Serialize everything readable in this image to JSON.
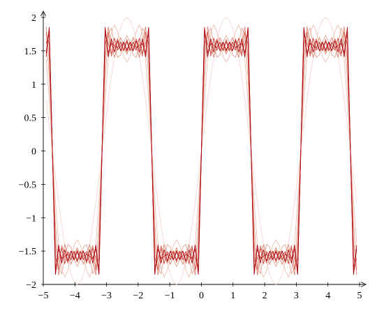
{
  "chart_data": {
    "type": "line",
    "x": [
      -4.909,
      -4.811,
      -4.712,
      -4.614,
      -4.516,
      -4.418,
      -4.32,
      -4.222,
      -4.123,
      -4.025,
      -3.927,
      -3.829,
      -3.731,
      -3.632,
      -3.534,
      -3.436,
      -3.338,
      -3.24,
      -3.142,
      -3.043,
      -2.945,
      -2.847,
      -2.749,
      -2.651,
      -2.553,
      -2.454,
      -2.356,
      -2.258,
      -2.16,
      -2.062,
      -1.963,
      -1.865,
      -1.767,
      -1.669,
      -1.571,
      -1.473,
      -1.374,
      -1.276,
      -1.178,
      -1.08,
      -0.982,
      -0.884,
      -0.785,
      -0.687,
      -0.589,
      -0.491,
      -0.393,
      -0.295,
      -0.196,
      -0.098,
      0,
      0.098,
      0.196,
      0.295,
      0.393,
      0.491,
      0.589,
      0.687,
      0.785,
      0.884,
      0.982,
      1.08,
      1.178,
      1.276,
      1.374,
      1.473,
      1.571,
      1.669,
      1.767,
      1.865,
      1.963,
      2.062,
      2.16,
      2.258,
      2.356,
      2.454,
      2.553,
      2.651,
      2.749,
      2.847,
      2.945,
      3.043,
      3.142,
      3.24,
      3.338,
      3.436,
      3.534,
      3.632,
      3.731,
      3.829,
      3.927,
      4.025,
      4.123,
      4.222,
      4.32,
      4.418,
      4.516,
      4.614,
      4.712,
      4.811,
      4.909
    ],
    "series": [
      {
        "color": "#f3d8d0",
        "values": [
          0.77,
          0.39,
          0,
          -0.39,
          -0.77,
          -1.11,
          -1.41,
          -1.66,
          -1.85,
          -1.96,
          -2,
          -1.96,
          -1.85,
          -1.66,
          -1.41,
          -1.11,
          -0.77,
          -0.39,
          0,
          0.39,
          0.77,
          1.11,
          1.41,
          1.66,
          1.85,
          1.96,
          2,
          1.96,
          1.85,
          1.66,
          1.41,
          1.11,
          0.77,
          0.39,
          0,
          -0.39,
          -0.77,
          -1.11,
          -1.41,
          -1.66,
          -1.85,
          -1.96,
          -2,
          -1.96,
          -1.85,
          -1.66,
          -1.41,
          -1.11,
          -0.77,
          -0.39,
          0,
          0.39,
          0.77,
          1.11,
          1.41,
          1.66,
          1.85,
          1.96,
          2,
          1.96,
          1.85,
          1.66,
          1.41,
          1.11,
          0.77,
          0.39,
          0,
          -0.39,
          -0.77,
          -1.11,
          -1.41,
          -1.66,
          -1.85,
          -1.96,
          -2,
          -1.96,
          -1.85,
          -1.66,
          -1.41,
          -1.11,
          -0.77,
          -0.39,
          0,
          0.39,
          0.77,
          1.11,
          1.41,
          1.66,
          1.85,
          1.96,
          2,
          1.96,
          1.85,
          1.66,
          1.41,
          1.11,
          0.77,
          0.39,
          0,
          -0.39,
          -0.77
        ]
      },
      {
        "color": "#ecc0b4",
        "values": [
          1.38,
          0.76,
          0,
          -0.76,
          -1.38,
          -1.77,
          -1.89,
          -1.79,
          -1.59,
          -1.41,
          -1.33,
          -1.41,
          -1.59,
          -1.79,
          -1.89,
          -1.77,
          -1.38,
          -0.76,
          0,
          0.76,
          1.38,
          1.77,
          1.89,
          1.79,
          1.59,
          1.41,
          1.33,
          1.41,
          1.59,
          1.79,
          1.89,
          1.77,
          1.38,
          0.76,
          0,
          -0.76,
          -1.38,
          -1.77,
          -1.89,
          -1.79,
          -1.59,
          -1.41,
          -1.33,
          -1.41,
          -1.59,
          -1.79,
          -1.89,
          -1.77,
          -1.38,
          -0.76,
          0,
          0.76,
          1.38,
          1.77,
          1.89,
          1.79,
          1.59,
          1.41,
          1.33,
          1.41,
          1.59,
          1.79,
          1.89,
          1.77,
          1.38,
          0.76,
          0,
          -0.76,
          -1.38,
          -1.77,
          -1.89,
          -1.79,
          -1.59,
          -1.41,
          -1.33,
          -1.41,
          -1.59,
          -1.79,
          -1.89,
          -1.77,
          -1.38,
          -0.76,
          0,
          0.76,
          1.38,
          1.77,
          1.89,
          1.79,
          1.59,
          1.41,
          1.33,
          1.41,
          1.59,
          1.79,
          1.89,
          1.77,
          1.38,
          0.76,
          0,
          -0.76,
          -1.38
        ]
      },
      {
        "color": "#e4a494",
        "values": [
          1.75,
          1.09,
          0,
          -1.09,
          -1.75,
          -1.84,
          -1.6,
          -1.4,
          -1.44,
          -1.63,
          -1.73,
          -1.63,
          -1.44,
          -1.4,
          -1.6,
          -1.84,
          -1.75,
          -1.09,
          0,
          1.09,
          1.75,
          1.84,
          1.6,
          1.4,
          1.44,
          1.63,
          1.73,
          1.63,
          1.44,
          1.4,
          1.6,
          1.84,
          1.75,
          1.09,
          0,
          -1.09,
          -1.75,
          -1.84,
          -1.6,
          -1.4,
          -1.44,
          -1.63,
          -1.73,
          -1.63,
          -1.44,
          -1.4,
          -1.6,
          -1.84,
          -1.75,
          -1.09,
          0,
          1.09,
          1.75,
          1.84,
          1.6,
          1.4,
          1.44,
          1.63,
          1.73,
          1.63,
          1.44,
          1.4,
          1.6,
          1.84,
          1.75,
          1.09,
          0,
          -1.09,
          -1.75,
          -1.84,
          -1.6,
          -1.4,
          -1.44,
          -1.63,
          -1.73,
          -1.63,
          -1.44,
          -1.4,
          -1.6,
          -1.84,
          -1.75,
          -1.09,
          0,
          1.09,
          1.75,
          1.84,
          1.6,
          1.4,
          1.44,
          1.63,
          1.73,
          1.63,
          1.44,
          1.4,
          1.6,
          1.84,
          1.75,
          1.09,
          0,
          -1.09,
          -1.75
        ]
      },
      {
        "color": "#dc8672",
        "values": [
          1.86,
          1.37,
          0,
          -1.37,
          -1.86,
          -1.61,
          -1.4,
          -1.56,
          -1.7,
          -1.57,
          -1.45,
          -1.57,
          -1.7,
          -1.56,
          -1.4,
          -1.61,
          -1.86,
          -1.37,
          0,
          1.37,
          1.86,
          1.61,
          1.4,
          1.56,
          1.7,
          1.57,
          1.45,
          1.57,
          1.7,
          1.56,
          1.4,
          1.61,
          1.86,
          1.37,
          0,
          -1.37,
          -1.86,
          -1.61,
          -1.4,
          -1.56,
          -1.7,
          -1.57,
          -1.45,
          -1.57,
          -1.7,
          -1.56,
          -1.4,
          -1.61,
          -1.86,
          -1.37,
          0,
          1.37,
          1.86,
          1.61,
          1.4,
          1.56,
          1.7,
          1.57,
          1.45,
          1.57,
          1.7,
          1.56,
          1.4,
          1.61,
          1.86,
          1.37,
          0,
          -1.37,
          -1.86,
          -1.61,
          -1.4,
          -1.56,
          -1.7,
          -1.57,
          -1.45,
          -1.57,
          -1.7,
          -1.56,
          -1.4,
          -1.61,
          -1.86,
          -1.37,
          0,
          1.37,
          1.86,
          1.61,
          1.4,
          1.56,
          1.7,
          1.57,
          1.45,
          1.57,
          1.7,
          1.56,
          1.4,
          1.61,
          1.86,
          1.37,
          0,
          -1.37,
          -1.86
        ]
      },
      {
        "color": "#d46452",
        "values": [
          1.78,
          1.59,
          0,
          -1.59,
          -1.78,
          -1.42,
          -1.56,
          -1.68,
          -1.5,
          -1.53,
          -1.67,
          -1.53,
          -1.5,
          -1.68,
          -1.56,
          -1.42,
          -1.78,
          -1.59,
          0,
          1.59,
          1.78,
          1.42,
          1.56,
          1.68,
          1.5,
          1.53,
          1.67,
          1.53,
          1.5,
          1.68,
          1.56,
          1.42,
          1.78,
          1.59,
          0,
          -1.59,
          -1.78,
          -1.42,
          -1.56,
          -1.68,
          -1.5,
          -1.53,
          -1.67,
          -1.53,
          -1.5,
          -1.68,
          -1.56,
          -1.42,
          -1.78,
          -1.59,
          0,
          1.59,
          1.78,
          1.42,
          1.56,
          1.68,
          1.5,
          1.53,
          1.67,
          1.53,
          1.5,
          1.68,
          1.56,
          1.42,
          1.78,
          1.59,
          0,
          -1.59,
          -1.78,
          -1.42,
          -1.56,
          -1.68,
          -1.5,
          -1.53,
          -1.67,
          -1.53,
          -1.5,
          -1.68,
          -1.56,
          -1.42,
          -1.78,
          -1.59,
          0,
          1.59,
          1.78,
          1.42,
          1.56,
          1.68,
          1.5,
          1.53,
          1.67,
          1.53,
          1.5,
          1.68,
          1.56,
          1.42,
          1.78,
          1.59,
          0,
          -1.59,
          -1.78
        ]
      },
      {
        "color": "#c94436",
        "values": [
          1.61,
          1.74,
          0,
          -1.74,
          -1.61,
          -1.46,
          -1.69,
          -1.51,
          -1.57,
          -1.63,
          -1.49,
          -1.63,
          -1.57,
          -1.51,
          -1.69,
          -1.46,
          -1.61,
          -1.74,
          0,
          1.74,
          1.61,
          1.46,
          1.69,
          1.51,
          1.57,
          1.63,
          1.49,
          1.63,
          1.57,
          1.51,
          1.69,
          1.46,
          1.61,
          1.74,
          0,
          -1.74,
          -1.61,
          -1.46,
          -1.69,
          -1.51,
          -1.57,
          -1.63,
          -1.49,
          -1.63,
          -1.57,
          -1.51,
          -1.69,
          -1.46,
          -1.61,
          -1.74,
          0,
          1.74,
          1.61,
          1.46,
          1.69,
          1.51,
          1.57,
          1.63,
          1.49,
          1.63,
          1.57,
          1.51,
          1.69,
          1.46,
          1.61,
          1.74,
          0,
          -1.74,
          -1.61,
          -1.46,
          -1.69,
          -1.51,
          -1.57,
          -1.63,
          -1.49,
          -1.63,
          -1.57,
          -1.51,
          -1.69,
          -1.46,
          -1.61,
          -1.74,
          0,
          1.74,
          1.61,
          1.46,
          1.69,
          1.51,
          1.57,
          1.63,
          1.49,
          1.63,
          1.57,
          1.51,
          1.69,
          1.46,
          1.61,
          1.74,
          0,
          -1.74,
          -1.61
        ]
      },
      {
        "color": "#bd2420",
        "values": [
          1.47,
          1.83,
          0,
          -1.83,
          -1.47,
          -1.61,
          -1.58,
          -1.54,
          -1.63,
          -1.5,
          -1.64,
          -1.5,
          -1.63,
          -1.54,
          -1.58,
          -1.61,
          -1.47,
          -1.83,
          0,
          1.83,
          1.47,
          1.61,
          1.58,
          1.54,
          1.63,
          1.5,
          1.64,
          1.5,
          1.63,
          1.54,
          1.58,
          1.61,
          1.47,
          1.83,
          0,
          -1.83,
          -1.47,
          -1.61,
          -1.58,
          -1.54,
          -1.63,
          -1.5,
          -1.64,
          -1.5,
          -1.63,
          -1.54,
          -1.58,
          -1.61,
          -1.47,
          -1.83,
          0,
          1.83,
          1.47,
          1.61,
          1.58,
          1.54,
          1.63,
          1.5,
          1.64,
          1.5,
          1.63,
          1.54,
          1.58,
          1.61,
          1.47,
          1.83,
          0,
          -1.83,
          -1.47,
          -1.61,
          -1.58,
          -1.54,
          -1.63,
          -1.5,
          -1.64,
          -1.5,
          -1.63,
          -1.54,
          -1.58,
          -1.61,
          -1.47,
          -1.83,
          0,
          1.83,
          1.47,
          1.61,
          1.58,
          1.54,
          1.63,
          1.5,
          1.64,
          1.5,
          1.63,
          1.54,
          1.58,
          1.61,
          1.47,
          1.83,
          0,
          -1.83,
          -1.47
        ]
      },
      {
        "color": "#a8000c",
        "values": [
          1.41,
          1.85,
          0,
          -1.85,
          -1.41,
          -1.68,
          -1.48,
          -1.65,
          -1.5,
          -1.63,
          -1.51,
          -1.63,
          -1.5,
          -1.65,
          -1.48,
          -1.68,
          -1.41,
          -1.85,
          0,
          1.85,
          1.41,
          1.68,
          1.48,
          1.65,
          1.5,
          1.63,
          1.51,
          1.63,
          1.5,
          1.65,
          1.48,
          1.68,
          1.41,
          1.85,
          0,
          -1.85,
          -1.41,
          -1.68,
          -1.48,
          -1.65,
          -1.5,
          -1.63,
          -1.51,
          -1.63,
          -1.5,
          -1.65,
          -1.48,
          -1.68,
          -1.41,
          -1.85,
          0,
          1.85,
          1.41,
          1.68,
          1.48,
          1.65,
          1.5,
          1.63,
          1.51,
          1.63,
          1.5,
          1.65,
          1.48,
          1.68,
          1.41,
          1.85,
          0,
          -1.85,
          -1.41,
          -1.68,
          -1.48,
          -1.65,
          -1.5,
          -1.63,
          -1.51,
          -1.63,
          -1.5,
          -1.65,
          -1.48,
          -1.68,
          -1.41,
          -1.85,
          0,
          1.85,
          1.41,
          1.68,
          1.48,
          1.65,
          1.5,
          1.63,
          1.51,
          1.63,
          1.5,
          1.65,
          1.48,
          1.68,
          1.41,
          1.85,
          0,
          -1.85,
          -1.41
        ]
      }
    ],
    "xlim": [
      -5,
      5
    ],
    "xticks": [
      {
        "value": -5,
        "label": "−5"
      },
      {
        "value": -4,
        "label": "−4"
      },
      {
        "value": -3,
        "label": "−3"
      },
      {
        "value": -2,
        "label": "−2"
      },
      {
        "value": -1,
        "label": "−1"
      },
      0,
      1,
      2,
      3,
      4,
      5
    ],
    "ylim": [
      -2,
      2
    ],
    "yticks": [
      {
        "value": -2,
        "label": "−2"
      },
      {
        "value": -1.5,
        "label": "−1.5"
      },
      {
        "value": -1,
        "label": "−1"
      },
      {
        "value": -0.5,
        "label": "−0.5"
      },
      0,
      0.5,
      1,
      1.5,
      2
    ],
    "grid": false
  }
}
